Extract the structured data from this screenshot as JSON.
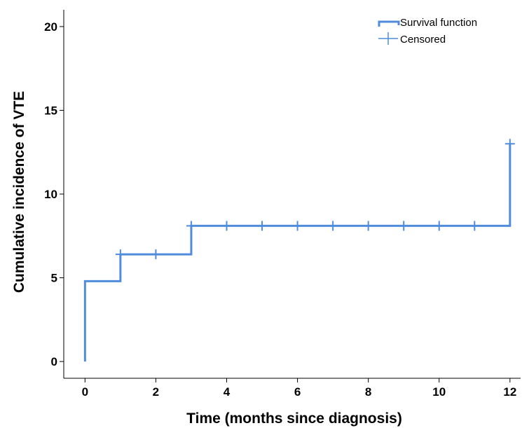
{
  "chart_data": {
    "type": "line",
    "title": "",
    "xlabel": "Time (months since diagnosis)",
    "ylabel": "Cumulative incidence of VTE",
    "xlim": [
      -0.6,
      12.3
    ],
    "ylim": [
      -1,
      21
    ],
    "x_ticks": [
      0,
      2,
      4,
      6,
      8,
      10,
      12
    ],
    "y_ticks": [
      0,
      5,
      10,
      15,
      20
    ],
    "grid": false,
    "legend_position": "top-right",
    "series": [
      {
        "name": "Survival function",
        "style": "step",
        "color": "#4f8ddc",
        "points": [
          [
            0,
            0
          ],
          [
            0,
            4.8
          ],
          [
            1,
            4.8
          ],
          [
            1,
            6.4
          ],
          [
            3,
            6.4
          ],
          [
            3,
            8.1
          ],
          [
            12,
            8.1
          ],
          [
            12,
            13
          ]
        ]
      },
      {
        "name": "Censored",
        "style": "marker",
        "color": "#4f8ddc",
        "points": [
          [
            1,
            6.4
          ],
          [
            2,
            6.4
          ],
          [
            3,
            8.1
          ],
          [
            4,
            8.1
          ],
          [
            5,
            8.1
          ],
          [
            6,
            8.1
          ],
          [
            7,
            8.1
          ],
          [
            8,
            8.1
          ],
          [
            9,
            8.1
          ],
          [
            10,
            8.1
          ],
          [
            11,
            8.1
          ],
          [
            12,
            13
          ]
        ]
      }
    ]
  }
}
